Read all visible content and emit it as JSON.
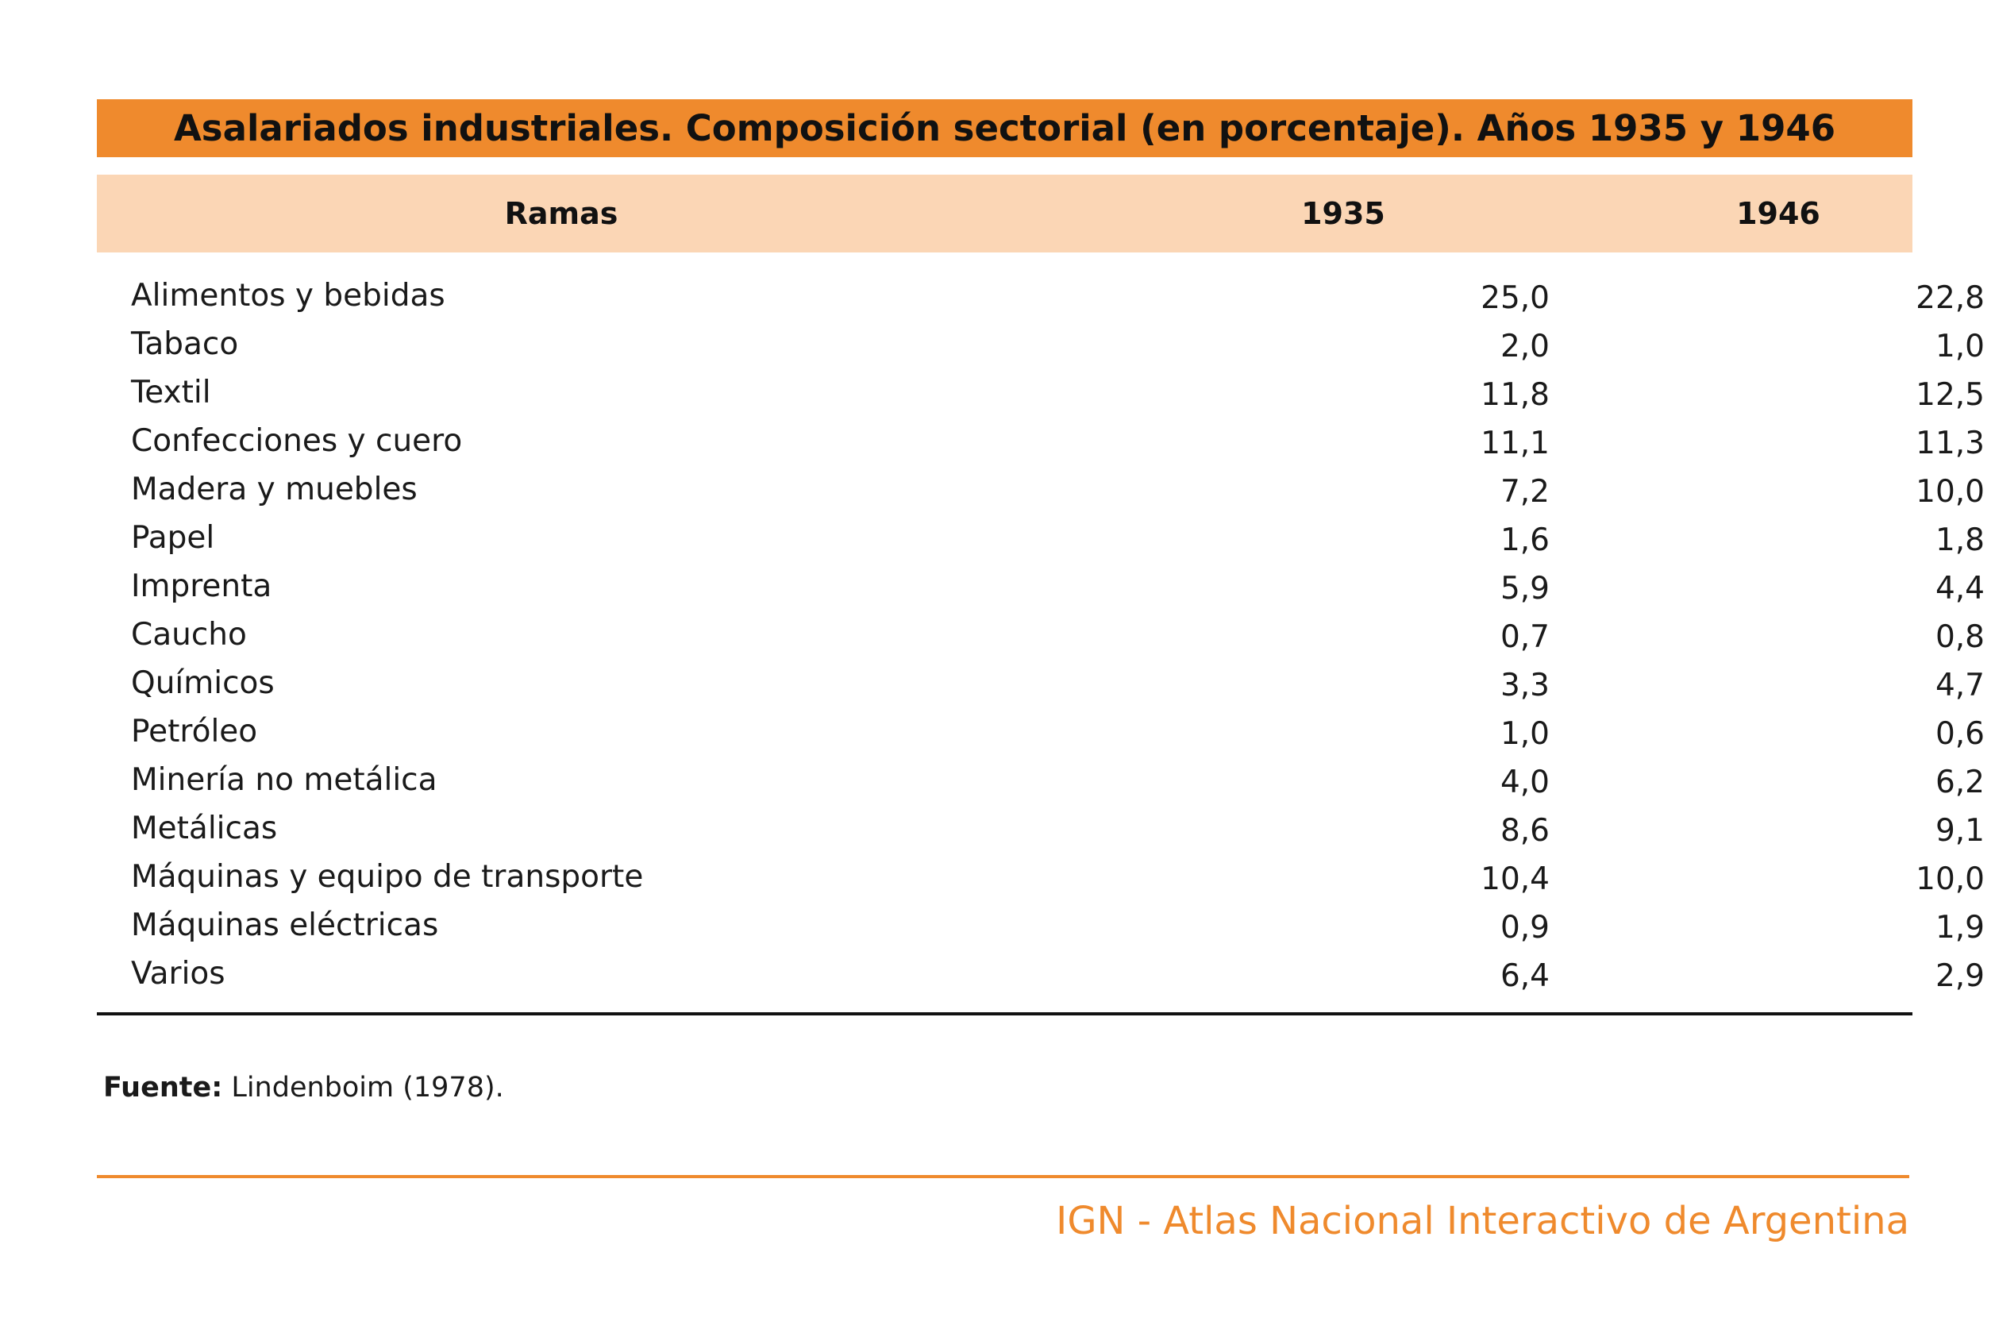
{
  "title": "Asalariados industriales. Composición sectorial (en porcentaje). Años 1935 y 1946",
  "colors": {
    "title_bar": "#ef8a2d",
    "header_band": "#fbd6b5",
    "footer_accent": "#ef8a2d"
  },
  "table": {
    "headers": [
      "Ramas",
      "1935",
      "1946"
    ],
    "rows": [
      {
        "rama": "Alimentos y bebidas",
        "y1935": "25,0",
        "y1946": "22,8"
      },
      {
        "rama": "Tabaco",
        "y1935": "2,0",
        "y1946": "1,0"
      },
      {
        "rama": "Textil",
        "y1935": "11,8",
        "y1946": "12,5"
      },
      {
        "rama": "Confecciones y cuero",
        "y1935": "11,1",
        "y1946": "11,3"
      },
      {
        "rama": "Madera y muebles",
        "y1935": "7,2",
        "y1946": "10,0"
      },
      {
        "rama": "Papel",
        "y1935": "1,6",
        "y1946": "1,8"
      },
      {
        "rama": "Imprenta",
        "y1935": "5,9",
        "y1946": "4,4"
      },
      {
        "rama": "Caucho",
        "y1935": "0,7",
        "y1946": "0,8"
      },
      {
        "rama": "Químicos",
        "y1935": "3,3",
        "y1946": "4,7"
      },
      {
        "rama": "Petróleo",
        "y1935": "1,0",
        "y1946": "0,6"
      },
      {
        "rama": "Minería no metálica",
        "y1935": "4,0",
        "y1946": "6,2"
      },
      {
        "rama": "Metálicas",
        "y1935": "8,6",
        "y1946": "9,1"
      },
      {
        "rama": "Máquinas y equipo de transporte",
        "y1935": "10,4",
        "y1946": "10,0"
      },
      {
        "rama": "Máquinas eléctricas",
        "y1935": "0,9",
        "y1946": "1,9"
      },
      {
        "rama": "Varios",
        "y1935": "6,4",
        "y1946": "2,9"
      }
    ]
  },
  "source": {
    "label": "Fuente:",
    "text": " Lindenboim (1978)."
  },
  "footer": "IGN - Atlas Nacional Interactivo de Argentina"
}
